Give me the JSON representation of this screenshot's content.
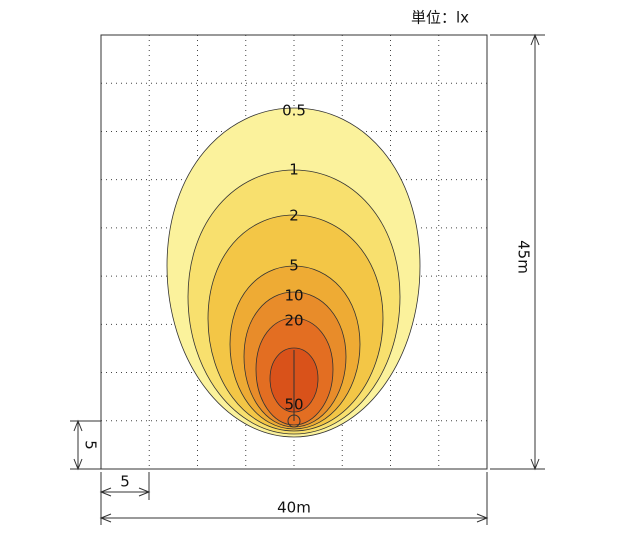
{
  "unit": "単位：lx",
  "contours": [
    {
      "label": "0.5",
      "color": "#fbf29c"
    },
    {
      "label": "1",
      "color": "#f8e06e"
    },
    {
      "label": "2",
      "color": "#f3c646"
    },
    {
      "label": "5",
      "color": "#eeab34"
    },
    {
      "label": "10",
      "color": "#e88c2a"
    },
    {
      "label": "20",
      "color": "#e36e22"
    },
    {
      "label": "50",
      "color": "#d9521a"
    }
  ],
  "dimensions": {
    "height": "45m",
    "width": "40m",
    "grid_x": "5",
    "grid_y": "5"
  }
}
